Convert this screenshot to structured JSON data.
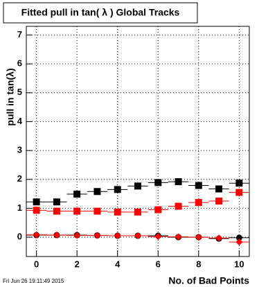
{
  "chart_data": {
    "type": "scatter",
    "title": "Fitted pull in tan( λ )  Global Tracks",
    "x_label": "No. of Bad Points",
    "y_label": "pull in tan(λ)",
    "footer": "Fri Jun 26 19:11:49 2015",
    "x": [
      0,
      1,
      2,
      3,
      4,
      5,
      6,
      7,
      8,
      9,
      10
    ],
    "xlim": [
      -0.5,
      10.5
    ],
    "ylim": [
      -0.67,
      7.3
    ],
    "xticks": [
      0,
      2,
      4,
      6,
      8,
      10
    ],
    "yticks": [
      0,
      1,
      2,
      3,
      4,
      5,
      6,
      7
    ],
    "grid": true,
    "series": [
      {
        "color": "#000000",
        "marker": "square",
        "xerr": 0.5,
        "values": [
          1.22,
          1.22,
          1.49,
          1.58,
          1.65,
          1.77,
          1.89,
          1.92,
          1.79,
          1.67,
          1.87
        ]
      },
      {
        "color": "#ff0000",
        "marker": "square",
        "xerr": 0.5,
        "values": [
          0.93,
          0.9,
          0.9,
          0.9,
          0.87,
          0.87,
          0.95,
          1.07,
          1.2,
          1.25,
          1.55
        ]
      },
      {
        "color": "#000000",
        "marker": "circle",
        "xerr": 0.5,
        "values": [
          0.07,
          0.07,
          0.07,
          0.06,
          0.05,
          0.05,
          0.05,
          0.0,
          0.0,
          -0.05,
          -0.02
        ]
      },
      {
        "color": "#ff0000",
        "marker": "diamond",
        "xerr": 0.5,
        "values": [
          0.08,
          0.07,
          0.06,
          0.06,
          0.05,
          0.05,
          0.02,
          0.01,
          0.0,
          -0.03,
          -0.17
        ]
      }
    ]
  }
}
